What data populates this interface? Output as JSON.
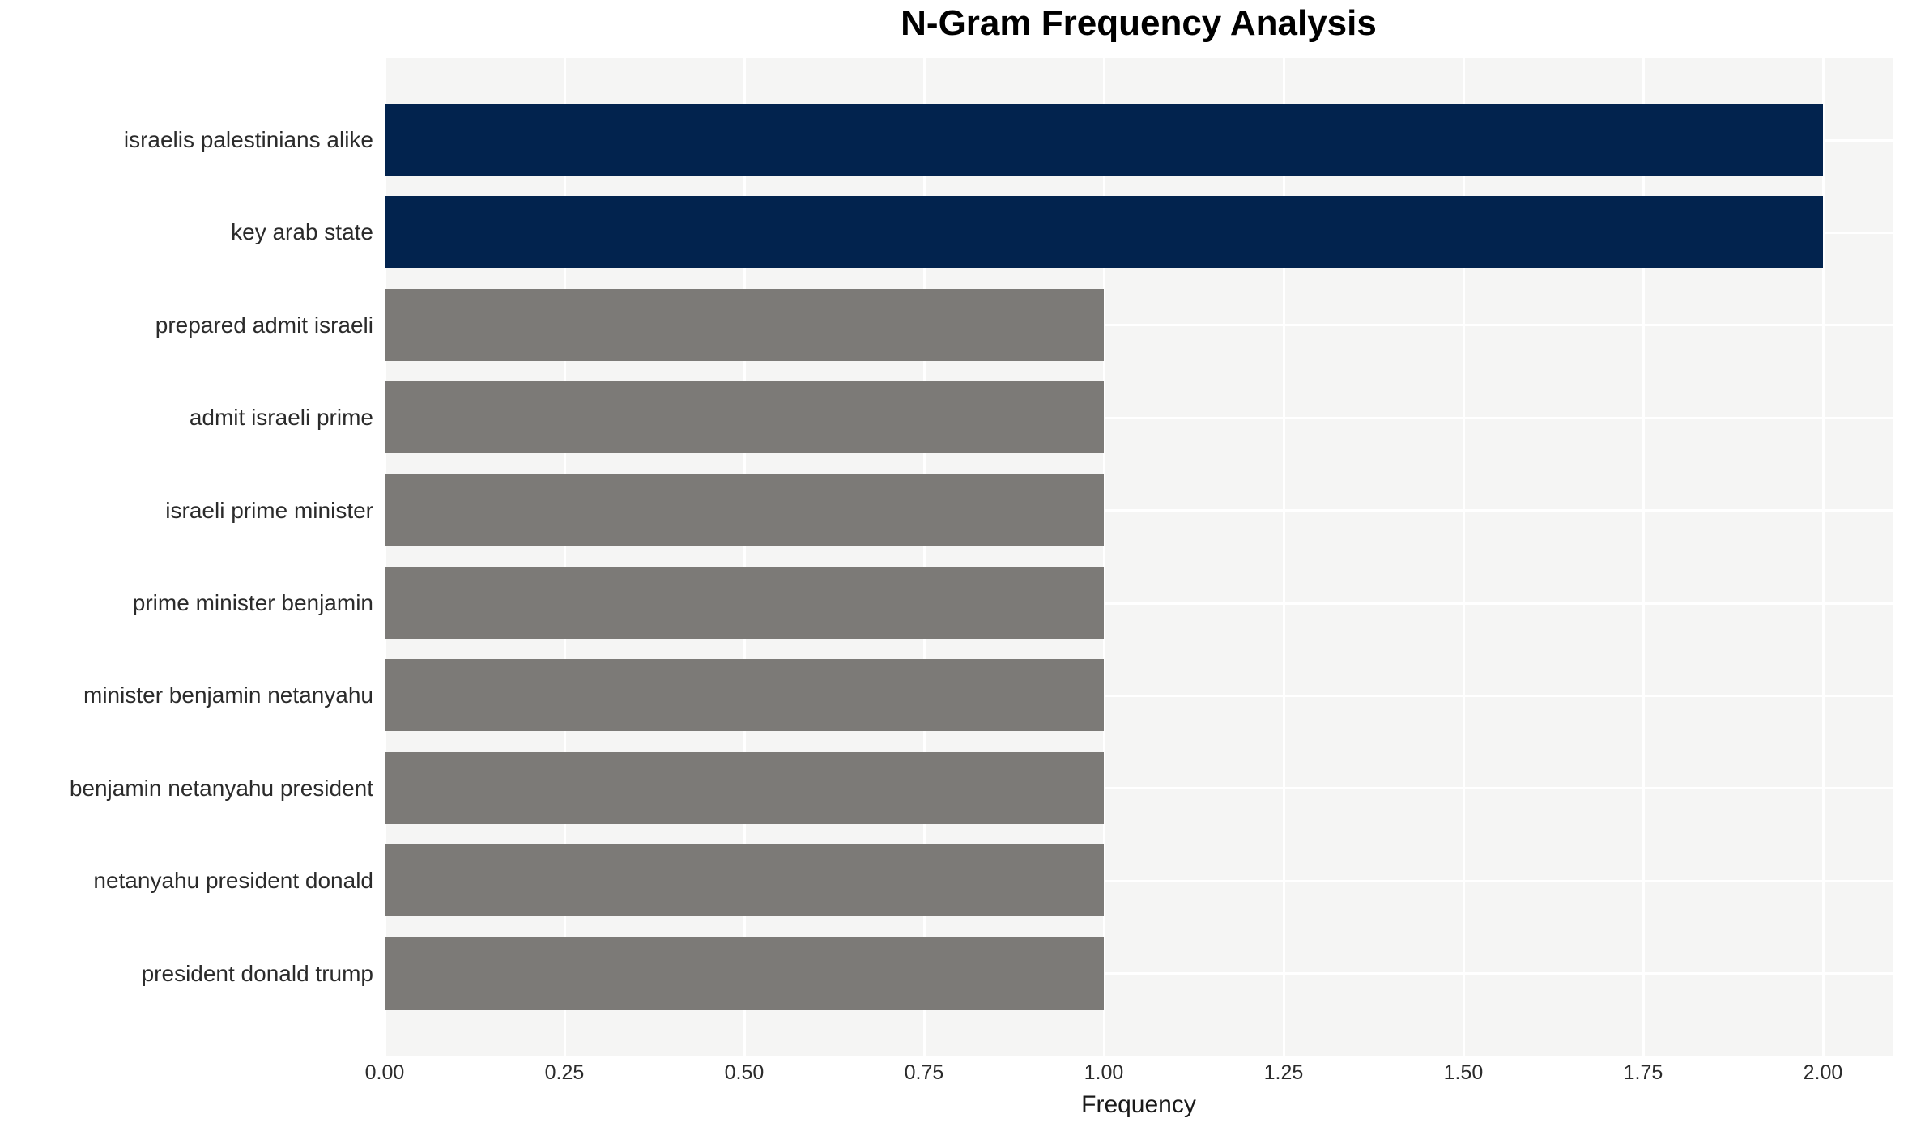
{
  "chart_data": {
    "type": "bar",
    "orientation": "horizontal",
    "title": "N-Gram Frequency Analysis",
    "xlabel": "Frequency",
    "ylabel": "",
    "categories": [
      "israelis palestinians alike",
      "key arab state",
      "prepared admit israeli",
      "admit israeli prime",
      "israeli prime minister",
      "prime minister benjamin",
      "minister benjamin netanyahu",
      "benjamin netanyahu president",
      "netanyahu president donald",
      "president donald trump"
    ],
    "values": [
      2,
      2,
      1,
      1,
      1,
      1,
      1,
      1,
      1,
      1
    ],
    "bar_colors": [
      "#02234e",
      "#02234e",
      "#7c7a77",
      "#7c7a77",
      "#7c7a77",
      "#7c7a77",
      "#7c7a77",
      "#7c7a77",
      "#7c7a77",
      "#7c7a77"
    ],
    "xlim": [
      0,
      2.1
    ],
    "xticks": [
      0,
      0.25,
      0.5,
      0.75,
      1.0,
      1.25,
      1.5,
      1.75,
      2.0
    ],
    "xtick_labels": [
      "0.00",
      "0.25",
      "0.50",
      "0.75",
      "1.00",
      "1.25",
      "1.50",
      "1.75",
      "2.00"
    ],
    "grid": true,
    "legend": false,
    "plot_bg_color": "#f5f5f4",
    "grid_color": "#ffffff",
    "highlight_color": "#02234e",
    "default_bar_color": "#7c7a77"
  }
}
